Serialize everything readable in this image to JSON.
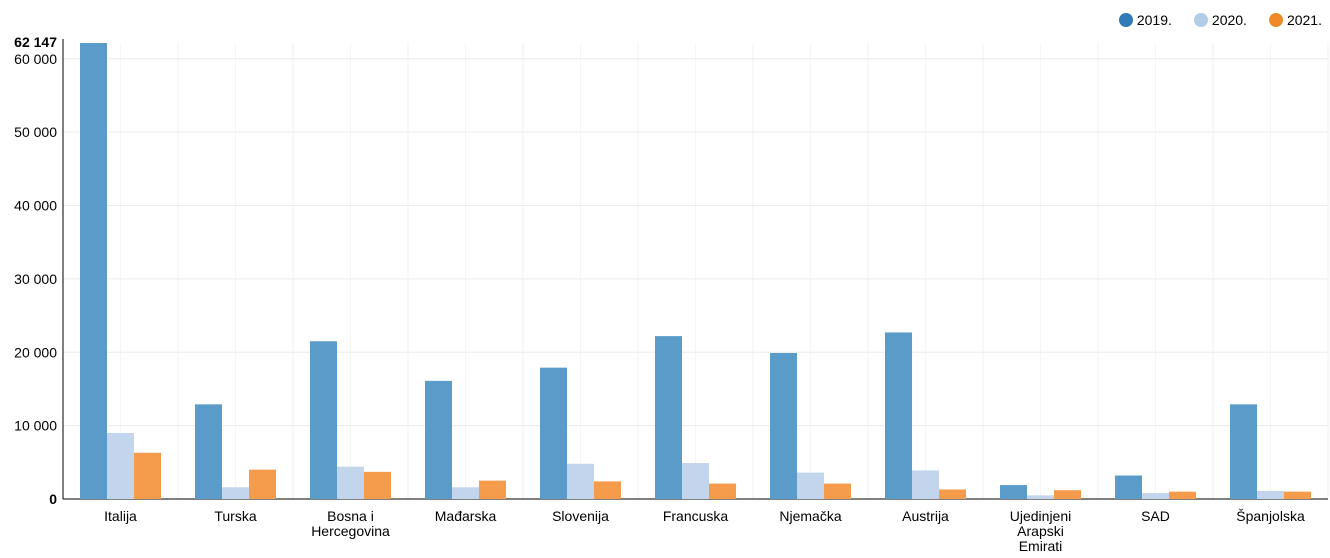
{
  "chart_data": {
    "type": "bar",
    "categories": [
      "Italija",
      "Turska",
      "Bosna i Hercegovina",
      "Mađarska",
      "Slovenija",
      "Francuska",
      "Njemačka",
      "Austrija",
      "Ujedinjeni Arapski Emirati",
      "SAD",
      "Španjolska"
    ],
    "category_lines": [
      [
        "Italija"
      ],
      [
        "Turska"
      ],
      [
        "Bosna i",
        "Hercegovina"
      ],
      [
        "Mađarska"
      ],
      [
        "Slovenija"
      ],
      [
        "Francuska"
      ],
      [
        "Njemačka"
      ],
      [
        "Austrija"
      ],
      [
        "Ujedinjeni",
        "Arapski",
        "Emirati"
      ],
      [
        "SAD"
      ],
      [
        "Španjolska"
      ]
    ],
    "series": [
      {
        "name": "2019.",
        "color": "#5b9bc9",
        "legend_color": "#2f7ab8",
        "values": [
          62147,
          12900,
          21500,
          16100,
          17900,
          22200,
          19900,
          22700,
          1900,
          3200,
          12900
        ]
      },
      {
        "name": "2020.",
        "color": "#c3d5ec",
        "legend_color": "#b3cde8",
        "values": [
          9000,
          1600,
          4400,
          1600,
          4800,
          4900,
          3600,
          3900,
          500,
          800,
          1100
        ]
      },
      {
        "name": "2021.",
        "color": "#f59b4c",
        "legend_color": "#f08a26",
        "values": [
          6300,
          4000,
          3700,
          2500,
          2400,
          2100,
          2100,
          1300,
          1200,
          1000,
          1000
        ]
      }
    ],
    "yticks": [
      "0",
      "10 000",
      "20 000",
      "30 000",
      "40 000",
      "50 000",
      "60 000"
    ],
    "ytick_values": [
      0,
      10000,
      20000,
      30000,
      40000,
      50000,
      60000
    ],
    "ymax_label": "62 147",
    "ymax_value": 62147,
    "ylim": [
      0,
      62147
    ],
    "grid": true,
    "legend_position": "top-right",
    "title": "",
    "xlabel": "",
    "ylabel": ""
  }
}
